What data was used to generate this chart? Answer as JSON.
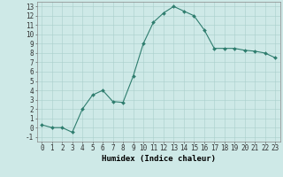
{
  "x": [
    0,
    1,
    2,
    3,
    4,
    5,
    6,
    7,
    8,
    9,
    10,
    11,
    12,
    13,
    14,
    15,
    16,
    17,
    18,
    19,
    20,
    21,
    22,
    23
  ],
  "y": [
    0.3,
    0.0,
    0.0,
    -0.5,
    2.0,
    3.5,
    4.0,
    2.8,
    2.7,
    5.5,
    9.0,
    11.3,
    12.3,
    13.0,
    12.5,
    12.0,
    10.5,
    8.5,
    8.5,
    8.5,
    8.3,
    8.2,
    8.0,
    7.5
  ],
  "line_color": "#2e7d6e",
  "marker": "D",
  "marker_size": 2,
  "bg_color": "#cee9e7",
  "grid_color": "#aacfcc",
  "xlabel": "Humidex (Indice chaleur)",
  "ylim": [
    -1.5,
    13.5
  ],
  "xlim": [
    -0.5,
    23.5
  ],
  "yticks": [
    -1,
    0,
    1,
    2,
    3,
    4,
    5,
    6,
    7,
    8,
    9,
    10,
    11,
    12,
    13
  ],
  "xticks": [
    0,
    1,
    2,
    3,
    4,
    5,
    6,
    7,
    8,
    9,
    10,
    11,
    12,
    13,
    14,
    15,
    16,
    17,
    18,
    19,
    20,
    21,
    22,
    23
  ],
  "xlabel_fontsize": 6.5,
  "tick_fontsize": 5.5
}
